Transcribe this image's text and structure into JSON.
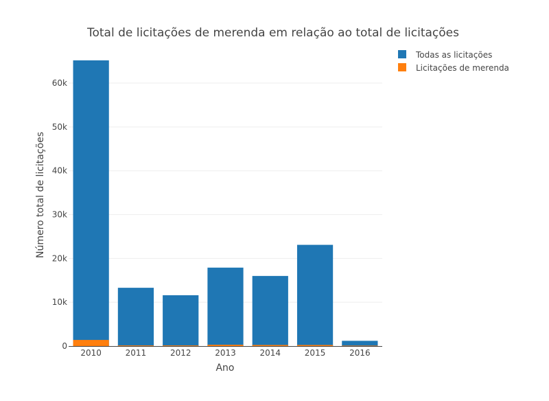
{
  "chart_data": {
    "type": "bar",
    "title": "Total de licitações de merenda em relação ao total de licitações",
    "xlabel": "Ano",
    "ylabel": "Número total de licitações",
    "categories": [
      "2010",
      "2011",
      "2012",
      "2013",
      "2014",
      "2015",
      "2016"
    ],
    "series": [
      {
        "name": "Todas as licitações",
        "color": "#1f77b4",
        "values": [
          65200,
          13300,
          11600,
          17900,
          16000,
          23100,
          1200
        ]
      },
      {
        "name": "Licitações de merenda",
        "color": "#ff7f0e",
        "values": [
          1400,
          150,
          150,
          300,
          250,
          250,
          100
        ]
      }
    ],
    "ylim": [
      0,
      68000
    ],
    "yticks": [
      0,
      10000,
      20000,
      30000,
      40000,
      50000,
      60000
    ],
    "ytick_labels": [
      "0",
      "10k",
      "20k",
      "30k",
      "40k",
      "50k",
      "60k"
    ],
    "grid": true,
    "legend": "top-right",
    "barmode": "overlay"
  }
}
